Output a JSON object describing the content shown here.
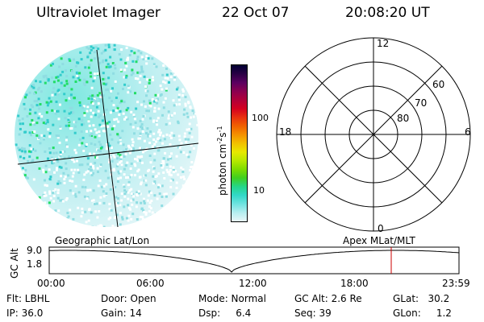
{
  "header": {
    "title": "Ultraviolet Imager",
    "date": "22 Oct 07",
    "time": "20:08:20 UT"
  },
  "colorbar": {
    "unit_label": "photon cm",
    "unit_exp1": "-2",
    "unit_mid": "s",
    "unit_exp2": "-1",
    "ticks": [
      "100",
      "10"
    ],
    "colors": [
      "#000033",
      "#2a0044",
      "#5a0060",
      "#8b0050",
      "#b0003a",
      "#d40020",
      "#e83010",
      "#f06000",
      "#f59000",
      "#f2c000",
      "#e8e800",
      "#b8e800",
      "#7ddc00",
      "#3fcf20",
      "#25d68a",
      "#32d8c8",
      "#6fe3e0",
      "#b5eef0",
      "#e8f6f8"
    ]
  },
  "polar_grid": {
    "top_label": "12",
    "left_label": "18",
    "right_label": "6",
    "bottom_label": "0",
    "lat_labels": [
      "60",
      "70",
      "80"
    ]
  },
  "timeline": {
    "y_axis_label": "GC Alt",
    "y_ticks": [
      "9.0",
      "1.8"
    ],
    "left_title": "Geographic Lat/Lon",
    "right_title": "Apex MLat/MLT",
    "x_ticks": [
      "00:00",
      "06:00",
      "12:00",
      "18:00",
      "23:59"
    ],
    "curve_color": "#000000",
    "marker_color": "#cc0000"
  },
  "status": {
    "flt": "Flt: LBHL",
    "ip": "IP: 36.0",
    "door": "Door: Open",
    "gain": "Gain: 14",
    "mode": "Mode: Normal",
    "dsp": "Dsp:     6.4",
    "gc_alt": "GC Alt: 2.6 Re",
    "seq": "Seq: 39",
    "glat": "GLat:   30.2",
    "glon": "GLon:     1.2"
  }
}
